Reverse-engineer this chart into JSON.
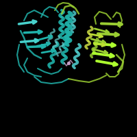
{
  "background_color": "#000000",
  "helix_color1": "#20B2AA",
  "helix_color2": "#9ACD32",
  "strand_color1": "#48D1CC",
  "strand_color2": "#ADFF2F",
  "loop_color1": "#20B2AA",
  "loop_color2": "#9ACD32",
  "small_molecule_color": "#C8A0C8",
  "helix_color1b": "#4DC8C8",
  "helix_color2b": "#CCDD44",
  "helix_color2c": "#BBDD33"
}
